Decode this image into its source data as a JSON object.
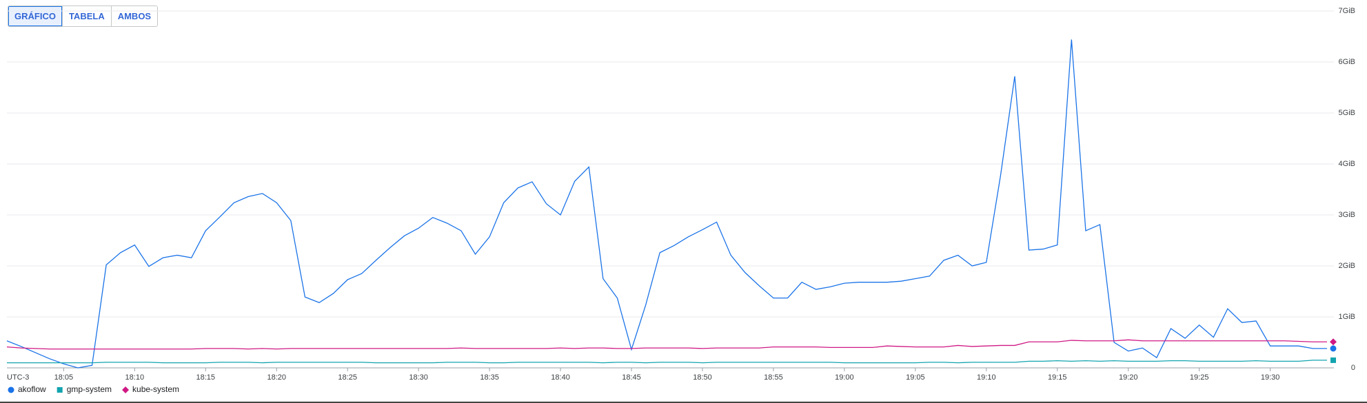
{
  "toolbar": {
    "buttons": [
      "GRÁFICO",
      "TABELA",
      "AMBOS"
    ],
    "selected": 0
  },
  "chart_data": {
    "type": "line",
    "timezone": "UTC-3",
    "x": [
      "18:01",
      "18:02",
      "18:03",
      "18:04",
      "18:05",
      "18:06",
      "18:07",
      "18:08",
      "18:09",
      "18:10",
      "18:11",
      "18:12",
      "18:13",
      "18:14",
      "18:15",
      "18:16",
      "18:17",
      "18:18",
      "18:19",
      "18:20",
      "18:21",
      "18:22",
      "18:23",
      "18:24",
      "18:25",
      "18:26",
      "18:27",
      "18:28",
      "18:29",
      "18:30",
      "18:31",
      "18:32",
      "18:33",
      "18:34",
      "18:35",
      "18:36",
      "18:37",
      "18:38",
      "18:39",
      "18:40",
      "18:41",
      "18:42",
      "18:43",
      "18:44",
      "18:45",
      "18:46",
      "18:47",
      "18:48",
      "18:49",
      "18:50",
      "18:51",
      "18:52",
      "18:53",
      "18:54",
      "18:55",
      "18:56",
      "18:57",
      "18:58",
      "18:59",
      "19:00",
      "19:01",
      "19:02",
      "19:03",
      "19:04",
      "19:05",
      "19:06",
      "19:07",
      "19:08",
      "19:09",
      "19:10",
      "19:11",
      "19:12",
      "19:13",
      "19:14",
      "19:15",
      "19:16",
      "19:17",
      "19:18",
      "19:19",
      "19:20",
      "19:21",
      "19:22",
      "19:23",
      "19:24",
      "19:25",
      "19:26",
      "19:27",
      "19:28",
      "19:29",
      "19:30",
      "19:31",
      "19:32",
      "19:33",
      "19:34"
    ],
    "xlim": [
      "18:01",
      "19:34"
    ],
    "xticks": [
      "18:05",
      "18:10",
      "18:15",
      "18:20",
      "18:25",
      "18:30",
      "18:35",
      "18:40",
      "18:45",
      "18:50",
      "18:55",
      "19:00",
      "19:05",
      "19:10",
      "19:15",
      "19:20",
      "19:25",
      "19:30"
    ],
    "ylim": [
      0,
      7
    ],
    "yticks": [
      0,
      {
        "value": 1,
        "label": "1GiB"
      },
      {
        "value": 2,
        "label": "2GiB"
      },
      {
        "value": 3,
        "label": "3GiB"
      },
      {
        "value": 4,
        "label": "4GiB"
      },
      {
        "value": 5,
        "label": "5GiB"
      },
      {
        "value": 6,
        "label": "6GiB"
      },
      {
        "value": 7,
        "label": "7GiB"
      }
    ],
    "grid": true,
    "series": [
      {
        "name": "akoflow",
        "color": "#1a73e8",
        "marker": "circle",
        "values": [
          0.53,
          0.42,
          0.3,
          0.18,
          0.08,
          0.0,
          0.05,
          2.02,
          2.26,
          2.41,
          1.99,
          2.16,
          2.21,
          2.16,
          2.69,
          2.96,
          3.24,
          3.36,
          3.42,
          3.24,
          2.89,
          1.39,
          1.28,
          1.46,
          1.73,
          1.85,
          2.11,
          2.36,
          2.59,
          2.74,
          2.95,
          2.84,
          2.69,
          2.23,
          2.57,
          3.24,
          3.53,
          3.65,
          3.22,
          3.0,
          3.66,
          3.94,
          1.75,
          1.37,
          0.36,
          1.23,
          2.26,
          2.4,
          2.57,
          2.71,
          2.86,
          2.21,
          1.87,
          1.61,
          1.37,
          1.37,
          1.68,
          1.54,
          1.59,
          1.66,
          1.68,
          1.68,
          1.68,
          1.7,
          1.75,
          1.8,
          2.11,
          2.21,
          2.0,
          2.07,
          3.77,
          5.72,
          2.31,
          2.33,
          2.41,
          6.44,
          2.69,
          2.81,
          0.5,
          0.33,
          0.39,
          0.2,
          0.77,
          0.58,
          0.84,
          0.6,
          1.16,
          0.89,
          0.92,
          0.43,
          0.43,
          0.43,
          0.38,
          0.38
        ]
      },
      {
        "name": "gmp-system",
        "color": "#12a4af",
        "marker": "square",
        "values": [
          0.1,
          0.1,
          0.1,
          0.1,
          0.1,
          0.1,
          0.1,
          0.11,
          0.11,
          0.11,
          0.11,
          0.1,
          0.1,
          0.1,
          0.1,
          0.11,
          0.11,
          0.11,
          0.1,
          0.11,
          0.11,
          0.11,
          0.11,
          0.11,
          0.11,
          0.11,
          0.1,
          0.1,
          0.1,
          0.1,
          0.1,
          0.11,
          0.11,
          0.11,
          0.1,
          0.1,
          0.11,
          0.11,
          0.11,
          0.11,
          0.11,
          0.11,
          0.1,
          0.11,
          0.11,
          0.1,
          0.11,
          0.11,
          0.11,
          0.1,
          0.11,
          0.11,
          0.11,
          0.11,
          0.11,
          0.11,
          0.11,
          0.11,
          0.11,
          0.1,
          0.1,
          0.1,
          0.1,
          0.1,
          0.1,
          0.11,
          0.11,
          0.1,
          0.11,
          0.11,
          0.11,
          0.11,
          0.13,
          0.13,
          0.14,
          0.13,
          0.14,
          0.13,
          0.14,
          0.13,
          0.13,
          0.13,
          0.14,
          0.14,
          0.13,
          0.13,
          0.13,
          0.13,
          0.14,
          0.13,
          0.13,
          0.13,
          0.15,
          0.15
        ]
      },
      {
        "name": "kube-system",
        "color": "#d01884",
        "marker": "diamond",
        "values": [
          0.41,
          0.39,
          0.38,
          0.37,
          0.37,
          0.37,
          0.37,
          0.37,
          0.37,
          0.37,
          0.37,
          0.37,
          0.37,
          0.37,
          0.38,
          0.38,
          0.38,
          0.37,
          0.38,
          0.37,
          0.38,
          0.38,
          0.38,
          0.38,
          0.38,
          0.38,
          0.38,
          0.38,
          0.38,
          0.38,
          0.38,
          0.38,
          0.39,
          0.38,
          0.38,
          0.38,
          0.38,
          0.38,
          0.38,
          0.39,
          0.38,
          0.39,
          0.39,
          0.38,
          0.38,
          0.39,
          0.39,
          0.39,
          0.39,
          0.38,
          0.39,
          0.39,
          0.39,
          0.39,
          0.41,
          0.41,
          0.41,
          0.41,
          0.4,
          0.4,
          0.4,
          0.4,
          0.43,
          0.42,
          0.41,
          0.41,
          0.41,
          0.44,
          0.42,
          0.43,
          0.44,
          0.44,
          0.51,
          0.51,
          0.51,
          0.54,
          0.53,
          0.53,
          0.53,
          0.55,
          0.53,
          0.53,
          0.53,
          0.53,
          0.53,
          0.53,
          0.53,
          0.53,
          0.53,
          0.53,
          0.53,
          0.52,
          0.51,
          0.51
        ]
      }
    ]
  }
}
